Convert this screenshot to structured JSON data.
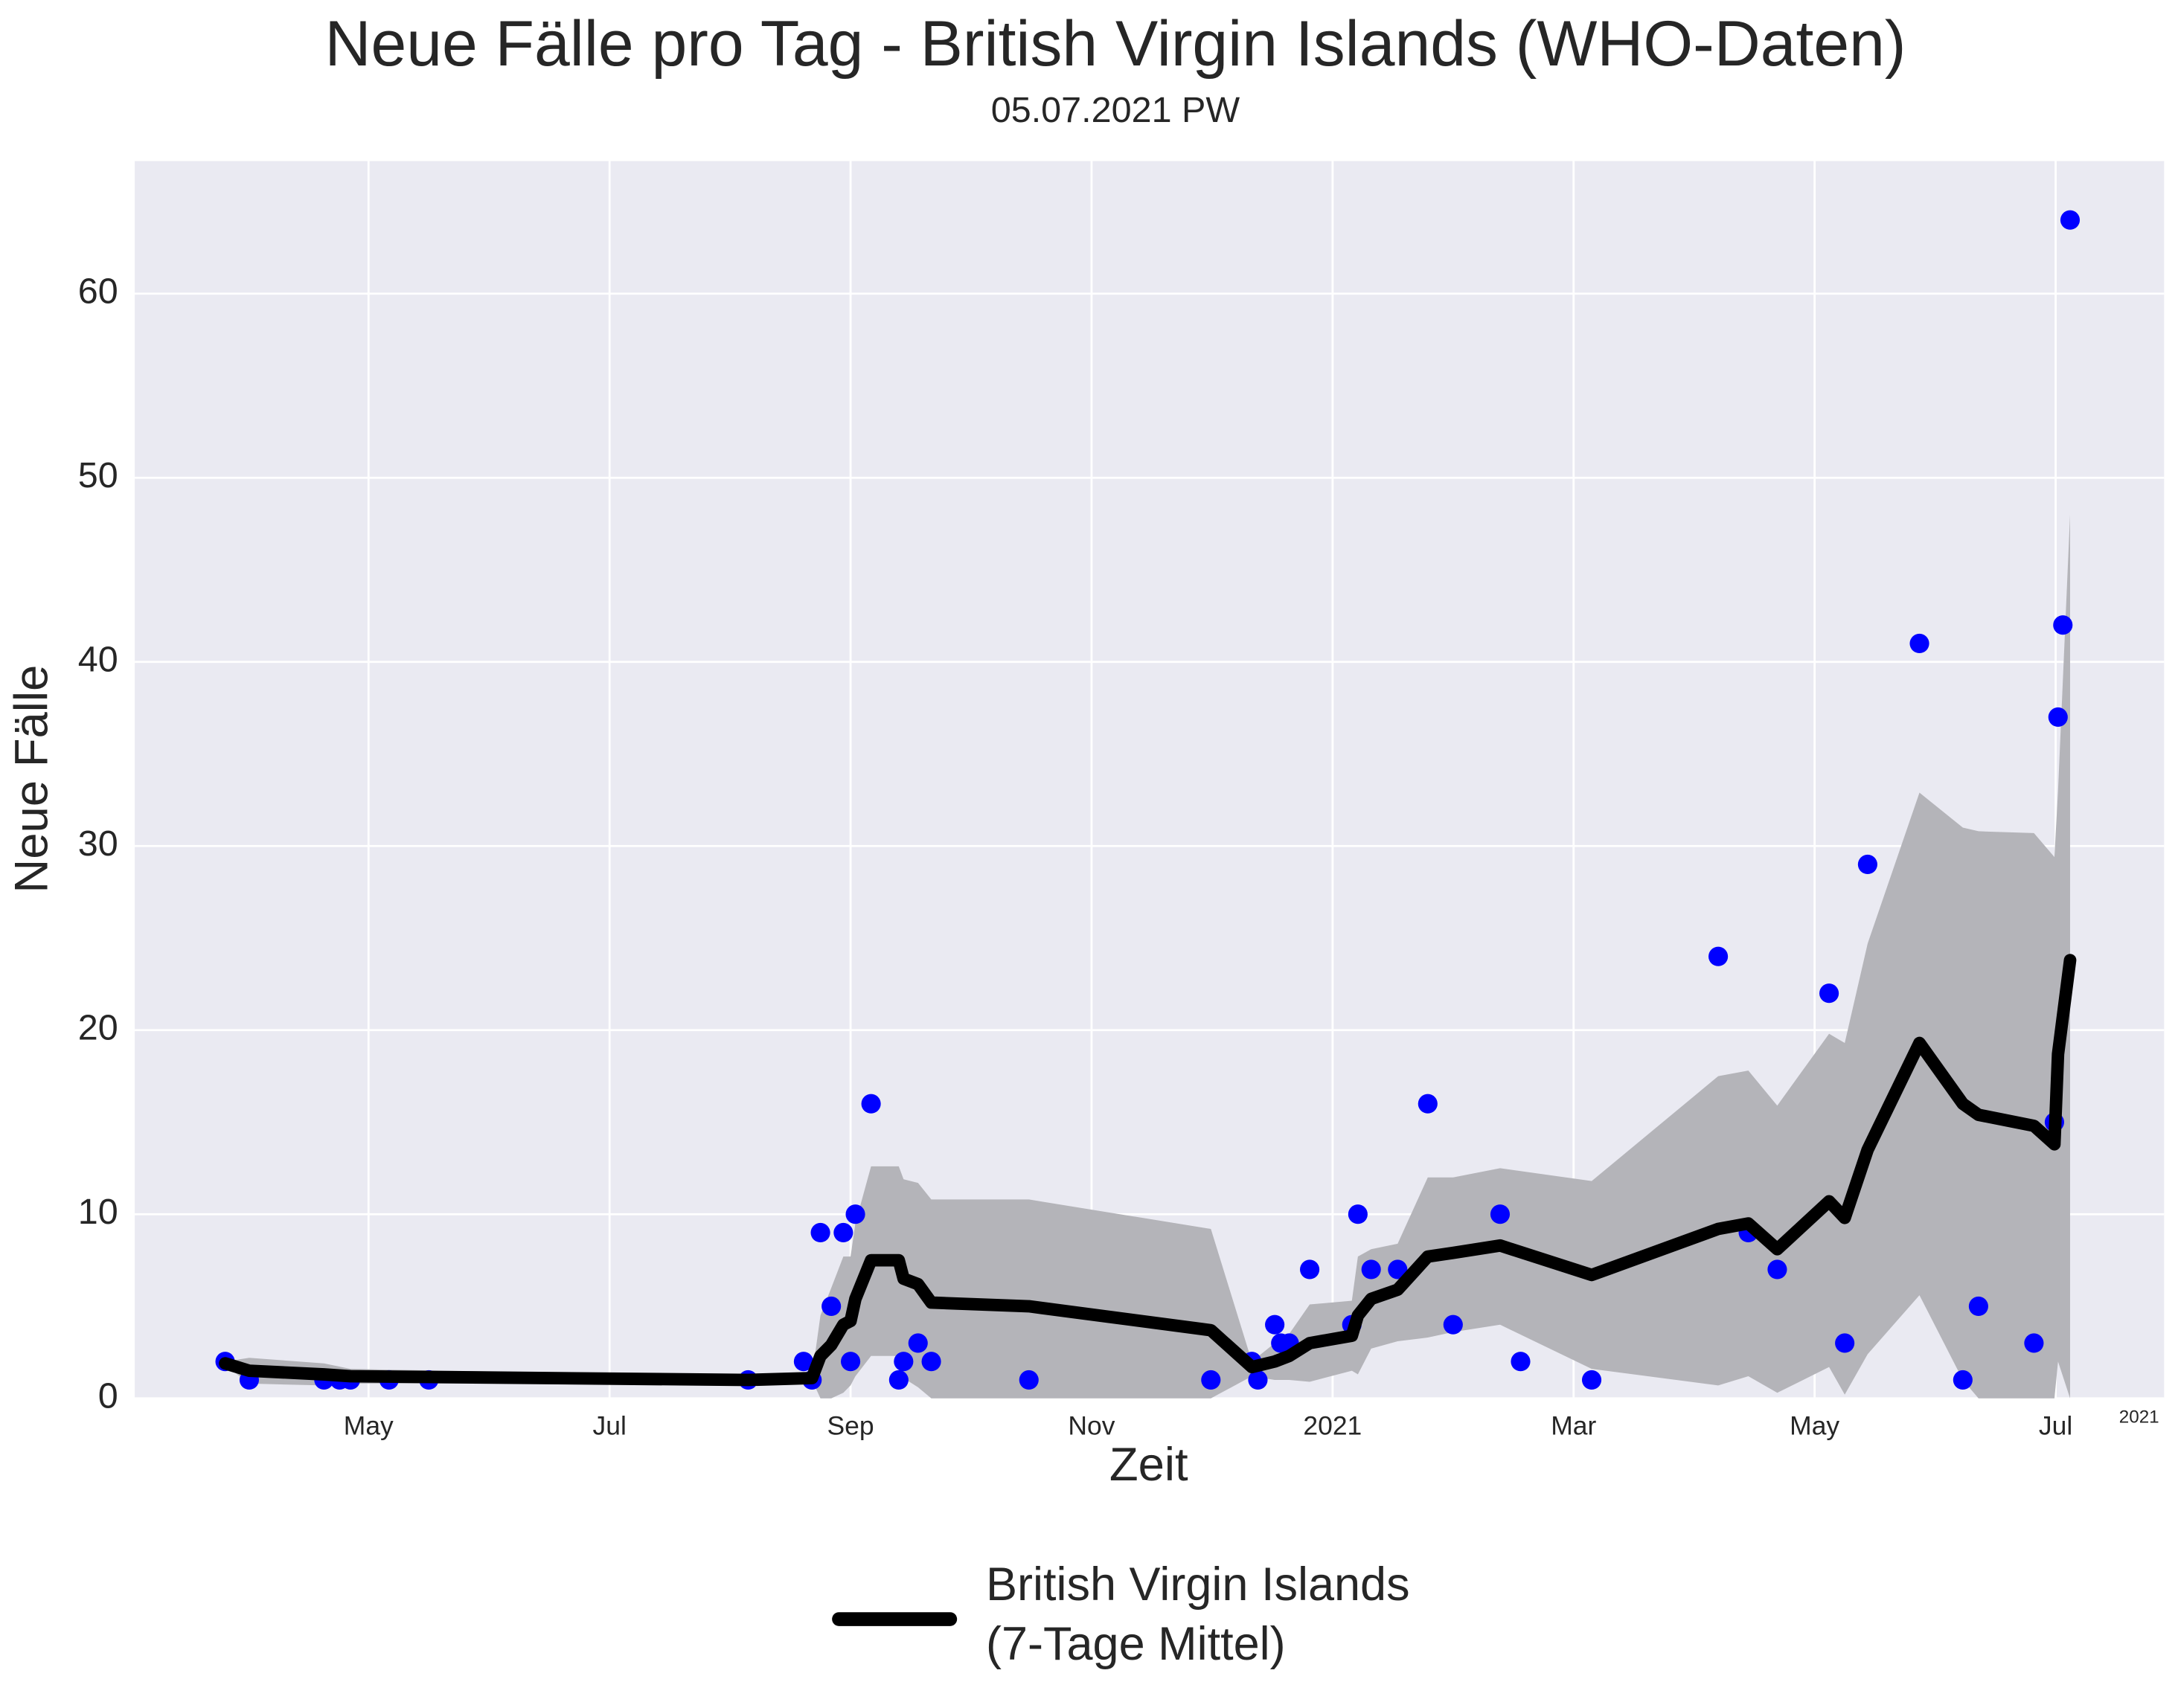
{
  "chart_data": {
    "type": "line",
    "title": "Neue Fälle pro Tag - British Virgin Islands (WHO-Daten)",
    "subtitle": "05.07.2021 PW",
    "x_label": "Zeit",
    "y_label": "Neue Fälle",
    "x_offset_label": "2021",
    "xlim": [
      3.06,
      19.9
    ],
    "ylim": [
      0,
      67.2
    ],
    "xticks": [
      {
        "value": 5,
        "label": "May"
      },
      {
        "value": 7,
        "label": "Jul"
      },
      {
        "value": 9,
        "label": "Sep"
      },
      {
        "value": 11,
        "label": "Nov"
      },
      {
        "value": 13,
        "label": "2021"
      },
      {
        "value": 15,
        "label": "Mar"
      },
      {
        "value": 17,
        "label": "May"
      },
      {
        "value": 19,
        "label": "Jul"
      }
    ],
    "yticks": [
      0,
      10,
      20,
      30,
      40,
      50,
      60
    ],
    "grid": true,
    "legend": "lower center",
    "scatter": {
      "color": "#0000ff",
      "x": [
        3.81,
        4.01,
        4.63,
        4.76,
        4.85,
        5.17,
        5.5,
        8.15,
        8.61,
        8.68,
        8.75,
        8.84,
        8.94,
        9.0,
        9.04,
        9.17,
        9.4,
        9.44,
        9.56,
        9.67,
        10.48,
        11.99,
        12.33,
        12.38,
        12.52,
        12.57,
        12.64,
        12.81,
        13.16,
        13.21,
        13.32,
        13.54,
        13.79,
        14.0,
        14.39,
        14.56,
        15.15,
        16.2,
        16.45,
        16.69,
        17.12,
        17.25,
        17.44,
        17.87,
        18.23,
        18.36,
        18.82,
        18.99,
        19.02,
        19.06,
        19.12
      ],
      "values": [
        2,
        1,
        1,
        1,
        1,
        1,
        1,
        1,
        2,
        1,
        9,
        5,
        9,
        2,
        10,
        16,
        1,
        2,
        3,
        2,
        1,
        1,
        2,
        1,
        4,
        3,
        3,
        7,
        4,
        10,
        7,
        7,
        16,
        4,
        10,
        2,
        1,
        24,
        9,
        7,
        22,
        3,
        29,
        41,
        1,
        5,
        3,
        15,
        37,
        42,
        64
      ]
    },
    "series": [
      {
        "name": "British Virgin Islands\n(7-Tage Mittel)",
        "color": "#000000",
        "band_color": "#b4b4b9",
        "x": [
          3.81,
          4.01,
          4.63,
          4.85,
          8.15,
          8.68,
          8.75,
          8.84,
          8.94,
          9.0,
          9.04,
          9.17,
          9.4,
          9.44,
          9.56,
          9.67,
          10.48,
          11.99,
          12.33,
          12.52,
          12.64,
          12.81,
          13.16,
          13.21,
          13.32,
          13.54,
          13.79,
          14.0,
          14.39,
          15.15,
          16.2,
          16.45,
          16.69,
          17.12,
          17.25,
          17.44,
          17.87,
          18.23,
          18.36,
          18.82,
          18.99,
          19.02,
          19.12
        ],
        "values": [
          1.9,
          1.5,
          1.3,
          1.2,
          1.0,
          1.1,
          2.3,
          2.9,
          4.0,
          4.2,
          5.4,
          7.5,
          7.5,
          6.5,
          6.2,
          5.2,
          5.0,
          3.7,
          1.7,
          2.0,
          2.3,
          3.0,
          3.4,
          4.5,
          5.4,
          5.9,
          7.7,
          7.9,
          8.3,
          6.7,
          9.2,
          9.5,
          8.1,
          10.7,
          9.8,
          13.5,
          19.3,
          16.0,
          15.4,
          14.8,
          13.8,
          18.7,
          23.8
        ],
        "band_upper": [
          2.0,
          2.2,
          1.9,
          1.6,
          1.2,
          1.2,
          4.5,
          6.0,
          7.7,
          7.7,
          9.5,
          12.6,
          12.6,
          11.9,
          11.7,
          10.8,
          10.8,
          9.2,
          2.0,
          3.0,
          3.5,
          5.1,
          5.3,
          7.7,
          8.1,
          8.4,
          12.0,
          12.0,
          12.5,
          11.8,
          17.5,
          17.8,
          15.9,
          19.8,
          19.3,
          24.7,
          32.9,
          31.0,
          30.8,
          30.7,
          29.4,
          33,
          48
        ],
        "band_lower": [
          1.8,
          0.8,
          0.7,
          0.8,
          0.8,
          1.0,
          0,
          0,
          0.3,
          0.7,
          1.2,
          2.3,
          2.3,
          1.1,
          0.6,
          0,
          0,
          0,
          1.2,
          1.0,
          1.0,
          0.9,
          1.5,
          1.3,
          2.7,
          3.1,
          3.3,
          3.6,
          4.0,
          1.6,
          0.7,
          1.2,
          0.3,
          1.7,
          0.2,
          2.4,
          5.6,
          1.0,
          0,
          0,
          0,
          2.0,
          0
        ]
      }
    ]
  }
}
